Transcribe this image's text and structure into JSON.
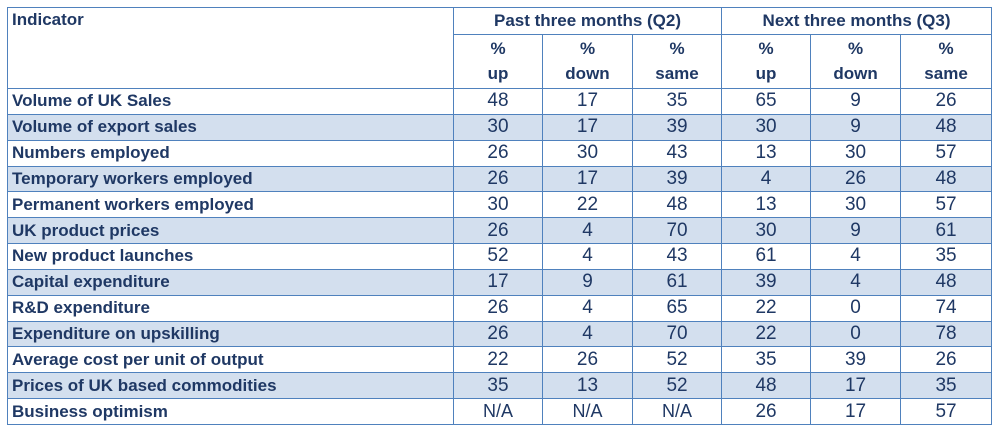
{
  "header": {
    "indicator": "Indicator",
    "past_group": "Past three months (Q2)",
    "next_group": "Next three months (Q3)",
    "sub": [
      {
        "pct": "%",
        "word": "up"
      },
      {
        "pct": "%",
        "word": "down"
      },
      {
        "pct": "%",
        "word": "same"
      },
      {
        "pct": "%",
        "word": "up"
      },
      {
        "pct": "%",
        "word": "down"
      },
      {
        "pct": "%",
        "word": "same"
      }
    ]
  },
  "rows": [
    {
      "label": "Volume of UK Sales",
      "values": [
        "48",
        "17",
        "35",
        "65",
        "9",
        "26"
      ]
    },
    {
      "label": "Volume of export sales",
      "values": [
        "30",
        "17",
        "39",
        "30",
        "9",
        "48"
      ]
    },
    {
      "label": "Numbers employed",
      "values": [
        "26",
        "30",
        "43",
        "13",
        "30",
        "57"
      ]
    },
    {
      "label": "Temporary workers employed",
      "values": [
        "26",
        "17",
        "39",
        "4",
        "26",
        "48"
      ]
    },
    {
      "label": "Permanent workers employed",
      "values": [
        "30",
        "22",
        "48",
        "13",
        "30",
        "57"
      ]
    },
    {
      "label": "UK product prices",
      "values": [
        "26",
        "4",
        "70",
        "30",
        "9",
        "61"
      ]
    },
    {
      "label": "New product launches",
      "values": [
        "52",
        "4",
        "43",
        "61",
        "4",
        "35"
      ]
    },
    {
      "label": "Capital expenditure",
      "values": [
        "17",
        "9",
        "61",
        "39",
        "4",
        "48"
      ]
    },
    {
      "label": "R&D expenditure",
      "values": [
        "26",
        "4",
        "65",
        "22",
        "0",
        "74"
      ]
    },
    {
      "label": "Expenditure on upskilling",
      "values": [
        "26",
        "4",
        "70",
        "22",
        "0",
        "78"
      ]
    },
    {
      "label": "Average cost per unit of output",
      "values": [
        "22",
        "26",
        "52",
        "35",
        "39",
        "26"
      ]
    },
    {
      "label": "Prices of UK based commodities",
      "values": [
        "35",
        "13",
        "52",
        "48",
        "17",
        "35"
      ]
    },
    {
      "label": "Business optimism",
      "values": [
        "N/A",
        "N/A",
        "N/A",
        "26",
        "17",
        "57"
      ]
    }
  ],
  "colors": {
    "text": "#1f3864",
    "border": "#4f81bd",
    "alt_row": "#d3dfee"
  }
}
